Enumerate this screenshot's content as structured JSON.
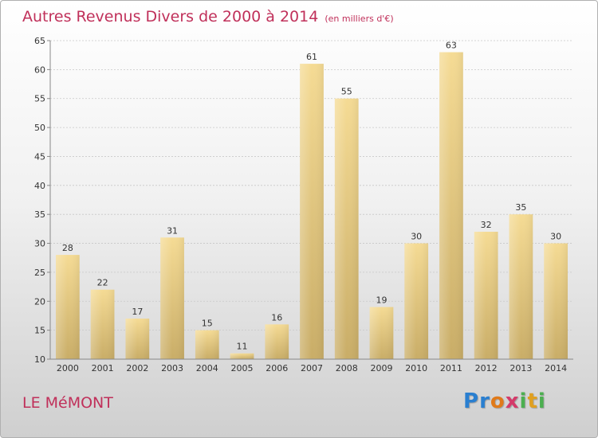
{
  "header": {
    "title": "Autres Revenus Divers de 2000 à 2014",
    "subtitle": "(en milliers d'€)"
  },
  "footer": {
    "place": "LE MéMONT",
    "logo_letters": [
      {
        "char": "P",
        "color": "#2a7fd0"
      },
      {
        "char": "r",
        "color": "#2a7fd0"
      },
      {
        "char": "o",
        "color": "#e07a1a"
      },
      {
        "char": "x",
        "color": "#d43a6a"
      },
      {
        "char": "i",
        "color": "#4caf50"
      },
      {
        "char": "t",
        "color": "#e0a020"
      },
      {
        "char": "i",
        "color": "#4caf50"
      }
    ]
  },
  "chart_data": {
    "type": "bar",
    "title": "Autres Revenus Divers de 2000 à 2014",
    "categories": [
      "2000",
      "2001",
      "2002",
      "2003",
      "2004",
      "2005",
      "2006",
      "2007",
      "2008",
      "2009",
      "2010",
      "2011",
      "2012",
      "2013",
      "2014"
    ],
    "values": [
      28,
      22,
      17,
      31,
      15,
      11,
      16,
      61,
      55,
      19,
      30,
      63,
      32,
      35,
      30
    ],
    "ylim": [
      10,
      65
    ],
    "yticks": [
      10,
      15,
      20,
      25,
      30,
      35,
      40,
      45,
      50,
      55,
      60,
      65
    ],
    "grid": true,
    "bar_color_top": "#f5db94",
    "bar_color_bottom": "#c9ad67",
    "label_color": "#333333",
    "axis_color": "#888888"
  }
}
